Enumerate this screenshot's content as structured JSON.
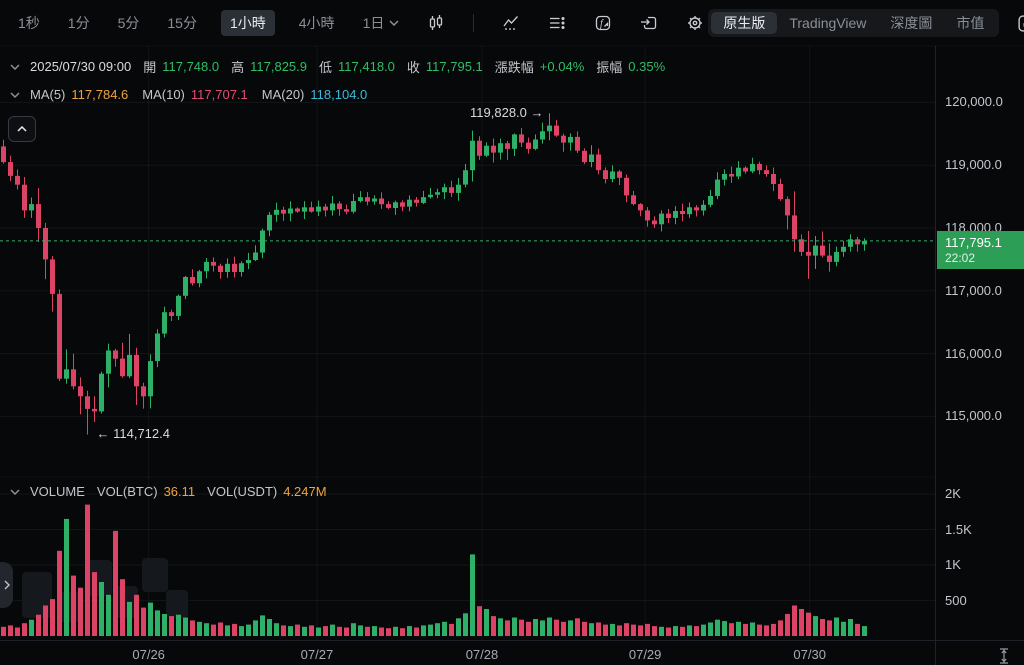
{
  "toolbar": {
    "intervals": [
      {
        "label": "1秒",
        "active": false,
        "has_dropdown": false
      },
      {
        "label": "1分",
        "active": false,
        "has_dropdown": false
      },
      {
        "label": "5分",
        "active": false,
        "has_dropdown": false
      },
      {
        "label": "15分",
        "active": false,
        "has_dropdown": false
      },
      {
        "label": "1小時",
        "active": true,
        "has_dropdown": false
      },
      {
        "label": "4小時",
        "active": false,
        "has_dropdown": false
      },
      {
        "label": "1日",
        "active": false,
        "has_dropdown": true
      }
    ],
    "icons": [
      "candlestick-icon",
      "indicator-icon",
      "layout-list-icon",
      "formula-icon",
      "save-layout-icon",
      "settings-gear-icon"
    ],
    "right_tabs": [
      {
        "label": "原生版",
        "active": true
      },
      {
        "label": "TradingView",
        "active": false
      },
      {
        "label": "深度圖",
        "active": false
      },
      {
        "label": "市值",
        "active": false
      }
    ],
    "fullscreen_icon": "fullscreen-icon"
  },
  "ohlc_row": {
    "date": "2025/07/30 09:00",
    "pairs": [
      {
        "label": "開",
        "value": "117,748.0"
      },
      {
        "label": "高",
        "value": "117,825.9"
      },
      {
        "label": "低",
        "value": "117,418.0"
      },
      {
        "label": "收",
        "value": "117,795.1"
      },
      {
        "label": "漲跌幅",
        "value": "+0.04%"
      },
      {
        "label": "振幅",
        "value": "0.35%"
      }
    ]
  },
  "ma_row": {
    "pairs": [
      {
        "label": "MA(5)",
        "value": "117,784.6",
        "color": "#F0A33C"
      },
      {
        "label": "MA(10)",
        "value": "117,707.1",
        "color": "#E24B72"
      },
      {
        "label": "MA(20)",
        "value": "118,104.0",
        "color": "#3CB9DA"
      }
    ]
  },
  "volume_row": {
    "title": "VOLUME",
    "pairs": [
      {
        "label": "VOL(BTC)",
        "value": "36.11",
        "color": "#F0A33C"
      },
      {
        "label": "VOL(USDT)",
        "value": "4.247M",
        "color": "#F0A33C"
      }
    ]
  },
  "price_badge": {
    "price": "117,795.1",
    "time": "22:02",
    "color": "#2C9E55"
  },
  "annotations": {
    "high": "119,828.0 →",
    "low": "← 114,712.4"
  },
  "chart_data": {
    "type": "candlestick",
    "price_axis": {
      "tick_labels": [
        "120,000.0",
        "119,000.0",
        "118,000.0",
        "117,000.0",
        "116,000.0",
        "115,000.0"
      ],
      "tick_values": [
        120000,
        119000,
        118000,
        117000,
        116000,
        115000
      ]
    },
    "volume_axis": {
      "tick_labels": [
        "2K",
        "1.5K",
        "1K",
        "500"
      ],
      "tick_values": [
        2000,
        1500,
        1000,
        500
      ]
    },
    "x_axis": {
      "labels": [
        "07/26",
        "07/27",
        "07/28",
        "07/29",
        "07/30"
      ],
      "fracs": [
        0.159,
        0.339,
        0.5155,
        0.69,
        0.866
      ]
    },
    "last_price": 117795.1,
    "last_price_time": "22:02",
    "session_high": {
      "price": 119828.0,
      "candle_index": 78
    },
    "session_low": {
      "price": 114712.4,
      "candle_index": 12
    },
    "closes": [
      119050,
      118830,
      118690,
      118280,
      118380,
      118000,
      117500,
      116950,
      115600,
      115750,
      115480,
      115320,
      115120,
      115080,
      115680,
      116050,
      115920,
      115640,
      115980,
      115480,
      115320,
      115880,
      116320,
      116660,
      116600,
      116920,
      117220,
      117120,
      117310,
      117460,
      117400,
      117300,
      117430,
      117300,
      117440,
      117490,
      117610,
      117960,
      118210,
      118290,
      118230,
      118310,
      118260,
      118330,
      118260,
      118340,
      118280,
      118390,
      118300,
      118260,
      118430,
      118490,
      118420,
      118470,
      118380,
      118320,
      118410,
      118340,
      118450,
      118400,
      118490,
      118530,
      118570,
      118650,
      118560,
      118690,
      118920,
      119390,
      119150,
      119310,
      119200,
      119350,
      119260,
      119490,
      119360,
      119260,
      119410,
      119540,
      119630,
      119470,
      119360,
      119450,
      119230,
      119050,
      119170,
      118920,
      118780,
      118900,
      118800,
      118520,
      118380,
      118280,
      118120,
      118060,
      118230,
      118160,
      118270,
      118220,
      118330,
      118280,
      118370,
      118510,
      118770,
      118860,
      118820,
      118960,
      118900,
      119020,
      118920,
      118860,
      118700,
      118460,
      118200,
      117820,
      117620,
      117560,
      117720,
      117560,
      117460,
      117620,
      117700,
      117820,
      117740,
      117795.1
    ],
    "volumes": [
      130,
      150,
      120,
      180,
      230,
      300,
      430,
      520,
      1200,
      1650,
      850,
      680,
      1850,
      900,
      760,
      580,
      1480,
      800,
      480,
      580,
      400,
      470,
      360,
      310,
      280,
      300,
      260,
      220,
      200,
      180,
      160,
      190,
      150,
      170,
      140,
      160,
      220,
      290,
      240,
      180,
      150,
      140,
      160,
      130,
      150,
      120,
      140,
      160,
      130,
      120,
      180,
      150,
      130,
      140,
      120,
      110,
      130,
      110,
      140,
      120,
      150,
      160,
      180,
      200,
      170,
      250,
      320,
      1150,
      420,
      380,
      280,
      250,
      220,
      260,
      230,
      200,
      240,
      220,
      260,
      230,
      200,
      220,
      250,
      200,
      180,
      190,
      160,
      170,
      150,
      180,
      160,
      150,
      170,
      140,
      130,
      120,
      140,
      130,
      150,
      140,
      160,
      190,
      230,
      210,
      180,
      200,
      170,
      190,
      160,
      150,
      170,
      220,
      310,
      430,
      380,
      330,
      280,
      240,
      220,
      260,
      200,
      240,
      170,
      140
    ],
    "colors": {
      "up": "#2FB068",
      "down": "#DC4365"
    }
  }
}
